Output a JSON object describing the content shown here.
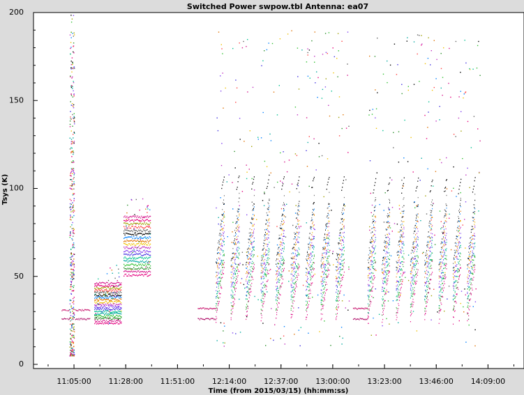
{
  "chart_data": {
    "type": "scatter",
    "title": "Switched Power  swpow.tbl   Antenna: ea07",
    "xlabel": "Time (from 2015/03/15) (hh:mm:ss)",
    "ylabel": "Tsys (K)",
    "ylim": [
      0,
      200
    ],
    "xlim": [
      "10:47:00",
      "14:25:00"
    ],
    "yticks": [
      0,
      50,
      100,
      150,
      200
    ],
    "ytick_labels": [
      "0",
      "50",
      "100",
      "150",
      "200"
    ],
    "xticks": [
      "11:05:00",
      "11:28:00",
      "11:51:00",
      "12:14:00",
      "12:37:00",
      "13:00:00",
      "13:23:00",
      "13:46:00",
      "14:09:00"
    ],
    "grid": false,
    "segments": [
      {
        "kind": "flat",
        "start": "10:59:30",
        "end": "11:01:30",
        "levels": [
          26,
          31
        ],
        "colors": [
          "#b0106a",
          "#c8156e"
        ]
      },
      {
        "kind": "flat",
        "start": "11:02:00",
        "end": "11:03:00",
        "levels": [
          26,
          31
        ],
        "colors": [
          "#b0106a",
          "#c8156e"
        ]
      },
      {
        "kind": "spike",
        "start": "11:03:00",
        "end": "11:05:00",
        "range": [
          5,
          200
        ]
      },
      {
        "kind": "flat",
        "start": "11:05:30",
        "end": "11:12:00",
        "levels": [
          26,
          31
        ],
        "colors": [
          "#b0106a",
          "#c8156e"
        ]
      },
      {
        "kind": "band",
        "start": "11:14:00",
        "end": "11:26:00",
        "range": [
          23,
          47
        ]
      },
      {
        "kind": "band",
        "start": "11:27:00",
        "end": "11:39:00",
        "range": [
          50,
          85
        ]
      },
      {
        "kind": "flat",
        "start": "12:00:00",
        "end": "12:08:00",
        "levels": [
          26,
          32
        ],
        "colors": [
          "#b0106a",
          "#c8156e"
        ]
      },
      {
        "kind": "cycles",
        "start": "12:08:00",
        "end": "13:08:00",
        "count": 9,
        "low": 25,
        "high": 108
      },
      {
        "kind": "flat",
        "start": "13:09:00",
        "end": "13:15:30",
        "levels": [
          26,
          32
        ],
        "colors": [
          "#b0106a",
          "#c8156e"
        ]
      },
      {
        "kind": "cycles",
        "start": "13:15:30",
        "end": "14:06:00",
        "count": 8,
        "low": 25,
        "high": 106
      }
    ],
    "series_colors": [
      "#e6007e",
      "#d4148a",
      "#2a8f2a",
      "#30c030",
      "#00a8a0",
      "#00c090",
      "#4030e0",
      "#8040f0",
      "#c030c0",
      "#f0c000",
      "#e07000",
      "#0080ff",
      "#000000",
      "#606060",
      "#ff4040",
      "#a0a000"
    ]
  }
}
